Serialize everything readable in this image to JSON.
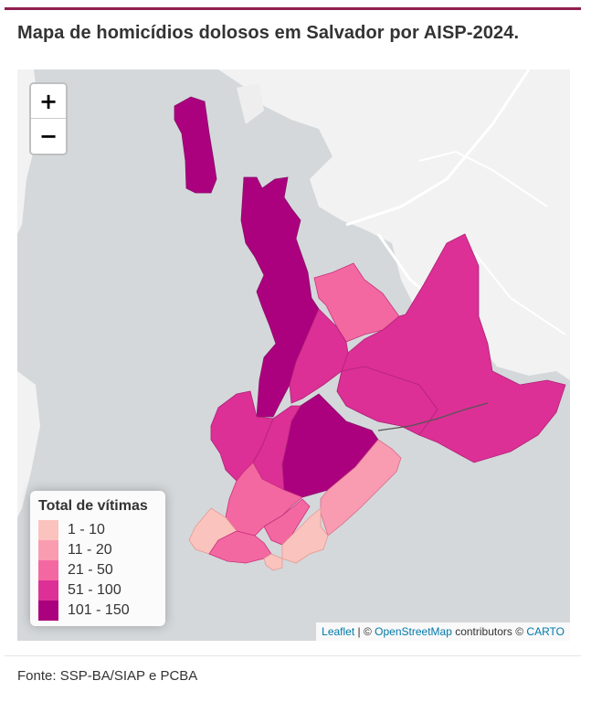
{
  "title": "Mapa de homicídios dolosos em Salvador por AISP-2024.",
  "zoom": {
    "in_label": "+",
    "out_label": "−"
  },
  "legend": {
    "title": "Total de vítimas",
    "items": [
      {
        "label": "1 - 10",
        "color": "#fbc3bd"
      },
      {
        "label": "11 - 20",
        "color": "#f99cb1"
      },
      {
        "label": "21 - 50",
        "color": "#f468a1"
      },
      {
        "label": "51 - 100",
        "color": "#dc3096"
      },
      {
        "label": "101 - 150",
        "color": "#ac017e"
      }
    ]
  },
  "attribution": {
    "leaflet": "Leaflet",
    "separator": " | © ",
    "osm": "OpenStreetMap",
    "contrib": " contributors © ",
    "carto": "CARTO"
  },
  "source": "Fonte: SSP-BA/SIAP e PCBA",
  "colors": {
    "water": "#d4d8da",
    "land": "#f2f2f2",
    "accent": "#8e1f4f"
  }
}
